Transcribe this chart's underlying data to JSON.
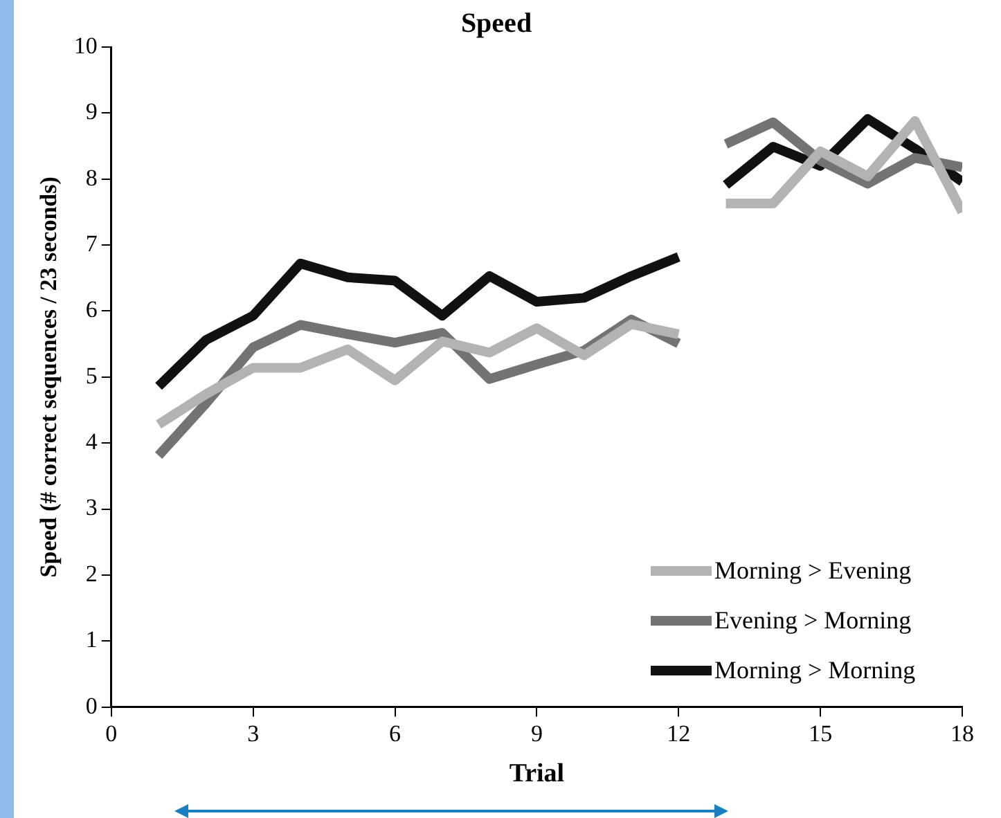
{
  "chart_data": {
    "type": "line",
    "title": "Speed",
    "xlabel": "Trial",
    "ylabel": "Speed (# correct sequences / 23 seconds)",
    "x": [
      1,
      2,
      3,
      4,
      5,
      6,
      7,
      8,
      9,
      10,
      11,
      12,
      12.5,
      13,
      14,
      15,
      16,
      17,
      18
    ],
    "series": [
      {
        "name": "Morning > Evening",
        "color": "#b3b3b3",
        "values": [
          4.28,
          4.74,
          5.14,
          5.14,
          5.42,
          4.95,
          5.54,
          5.37,
          5.74,
          5.33,
          5.8,
          5.65,
          null,
          7.63,
          7.63,
          8.42,
          8.04,
          8.88,
          7.5
        ]
      },
      {
        "name": "Evening > Morning",
        "color": "#737373",
        "values": [
          3.81,
          4.6,
          5.45,
          5.79,
          5.65,
          5.52,
          5.67,
          4.97,
          5.19,
          5.4,
          5.87,
          5.51,
          null,
          8.53,
          8.86,
          8.28,
          7.93,
          8.32,
          8.18
        ]
      },
      {
        "name": "Morning > Morning",
        "color": "#111111",
        "values": [
          4.86,
          5.56,
          5.93,
          6.72,
          6.51,
          6.46,
          5.93,
          6.53,
          6.14,
          6.2,
          6.53,
          6.82,
          null,
          7.91,
          8.49,
          8.2,
          8.91,
          8.46,
          7.96
        ]
      }
    ],
    "xlim": [
      0,
      18
    ],
    "xticks": [
      0,
      3,
      6,
      9,
      12,
      15,
      18
    ],
    "ylim": [
      0,
      10
    ],
    "yticks": [
      0,
      1,
      2,
      3,
      4,
      5,
      6,
      7,
      8,
      9,
      10
    ],
    "grid": false,
    "legend": "bottom right",
    "marker": "none",
    "line_style": "solid"
  }
}
